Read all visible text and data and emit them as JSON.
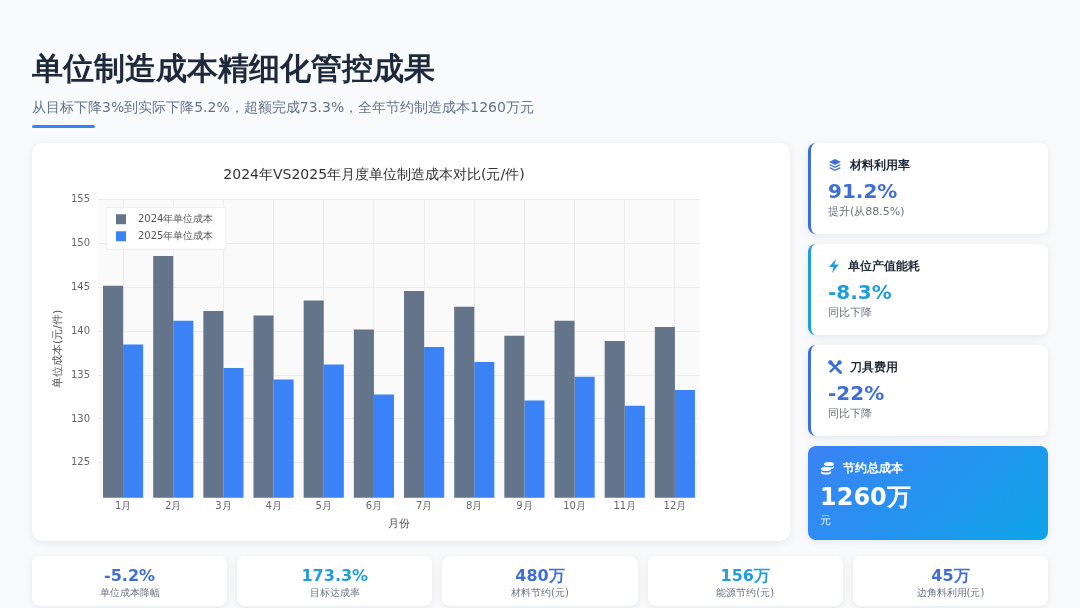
{
  "chart_data": [
    {
      "type": "other",
      "title": "单位制造成本精细化管控成果",
      "subtitle": "从目标下降3%到实际下降5.2%，超额完成73.3%，全年节约制造成本1260万元"
    },
    {
      "type": "bar",
      "title": "2024年VS2025年月度单位制造成本对比(元/件)",
      "xlabel": "月份",
      "ylabel": "单位成本(元/件)",
      "categories": [
        "1月",
        "2月",
        "3月",
        "4月",
        "5月",
        "6月",
        "7月",
        "8月",
        "9月",
        "10月",
        "11月",
        "12月"
      ],
      "series": [
        {
          "name": "2024年单位成本",
          "color": "#64748b",
          "values": [
            145.2,
            148.6,
            142.3,
            141.8,
            143.5,
            140.2,
            144.6,
            142.8,
            139.5,
            141.2,
            138.9,
            140.5
          ]
        },
        {
          "name": "2025年单位成本",
          "color": "#3b82f6",
          "values": [
            138.5,
            141.2,
            135.8,
            134.5,
            136.2,
            132.8,
            138.2,
            136.5,
            132.1,
            134.8,
            131.5,
            133.3
          ]
        }
      ],
      "ylim": [
        121,
        155
      ],
      "yticks": [
        125,
        130,
        135,
        140,
        145,
        150,
        155
      ],
      "grid": true,
      "legend": "top left"
    },
    {
      "type": "other",
      "categories": [
        "材料利用率",
        "单位产值能耗",
        "刀具费用",
        "节约总成本"
      ],
      "values": [
        91.2,
        -8.3,
        -22,
        1260
      ],
      "value_labels": [
        "91.2%",
        "-8.3%",
        "-22%",
        "1260万"
      ],
      "annotations": [
        "提升(从88.5%)",
        "同比下降",
        "同比下降",
        "元"
      ]
    },
    {
      "type": "other",
      "categories": [
        "单位成本降幅",
        "目标达成率",
        "材料节约(元)",
        "能源节约(元)",
        "边角料利用(元)"
      ],
      "values": [
        -5.2,
        173.3,
        480,
        156,
        45
      ],
      "value_labels": [
        "-5.2%",
        "173.3%",
        "480万",
        "156万",
        "45万"
      ]
    }
  ]
}
